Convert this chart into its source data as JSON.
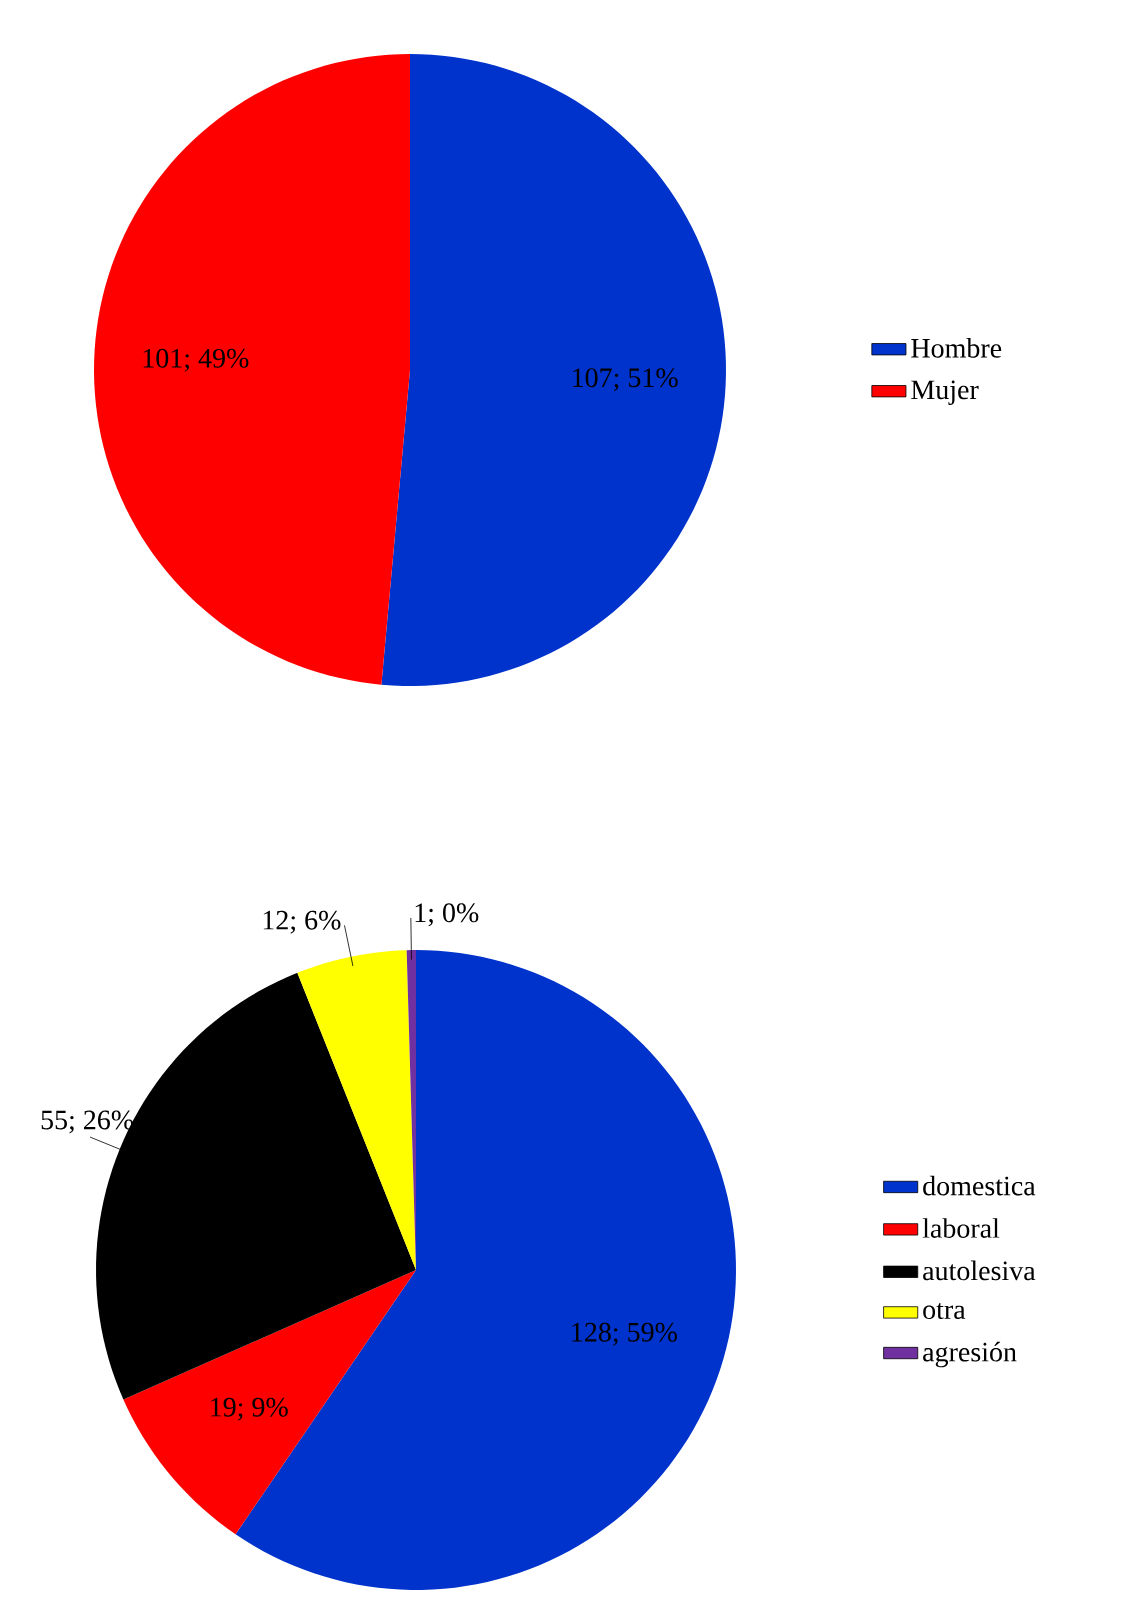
{
  "chart_data": [
    {
      "type": "pie",
      "categories": [
        "Hombre",
        "Mujer"
      ],
      "values": [
        107,
        101
      ],
      "colors": [
        "#0033cc",
        "#ff0000"
      ],
      "value_labels": [
        "107; 51%",
        "101; 49%"
      ],
      "legend": "right"
    },
    {
      "type": "pie",
      "categories": [
        "domestica",
        "laboral",
        "autolesiva",
        "otra",
        "agresión"
      ],
      "values": [
        128,
        19,
        55,
        12,
        1
      ],
      "colors": [
        "#0033cc",
        "#ff0000",
        "#000000",
        "#ffff00",
        "#7030a0"
      ],
      "value_labels": [
        "128; 59%",
        "19; 9%",
        "55; 26%",
        "12; 6%",
        "1; 0%"
      ],
      "legend": "right"
    }
  ]
}
